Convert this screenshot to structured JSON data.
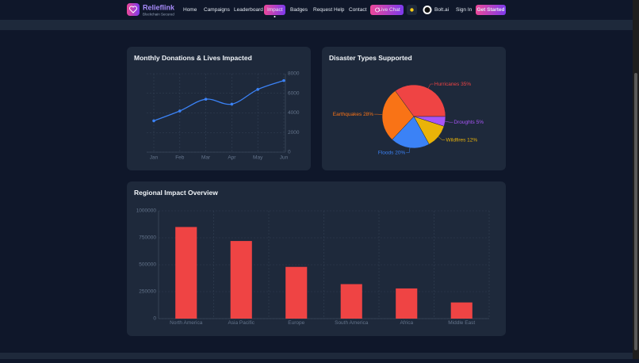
{
  "nav": {
    "brand": "Relieflink",
    "tagline": "Blockchain Secured",
    "links": [
      "Home",
      "Campaigns",
      "Leaderboard",
      "Impact",
      "Badges",
      "Request Help",
      "Contact"
    ],
    "live_chat": "Live Chat",
    "assistant": "Bolt.ai",
    "sign_in": "Sign In",
    "get_started": "Get Started"
  },
  "chart_data": [
    {
      "type": "line",
      "title": "Monthly Donations & Lives Impacted",
      "categories": [
        "Jan",
        "Feb",
        "Mar",
        "Apr",
        "May",
        "Jun"
      ],
      "values": [
        3200,
        4200,
        5400,
        4900,
        6400,
        7300
      ],
      "color": "#3b82f6",
      "ylim": [
        0,
        8000
      ],
      "yticks": [
        0,
        2000,
        4000,
        6000,
        8000
      ],
      "grid": true,
      "y_axis_side": "right"
    },
    {
      "type": "pie",
      "title": "Disaster Types Supported",
      "categories": [
        "Hurricanes",
        "Droughts",
        "Wildfires",
        "Floods",
        "Earthquakes"
      ],
      "values": [
        35,
        5,
        12,
        20,
        28
      ],
      "value_labels": [
        "35%",
        "5%",
        "12%",
        "20%",
        "28%"
      ],
      "colors": [
        "#ef4444",
        "#a855f7",
        "#eab308",
        "#3b82f6",
        "#f97316"
      ]
    },
    {
      "type": "bar",
      "title": "Regional Impact Overview",
      "categories": [
        "North America",
        "Asia Pacific",
        "Europe",
        "South America",
        "Africa",
        "Middle East"
      ],
      "values": [
        850000,
        720000,
        480000,
        320000,
        280000,
        150000
      ],
      "color": "#ef4444",
      "ylim": [
        0,
        1000000
      ],
      "yticks": [
        0,
        250000,
        500000,
        750000,
        1000000
      ],
      "grid": true
    }
  ]
}
